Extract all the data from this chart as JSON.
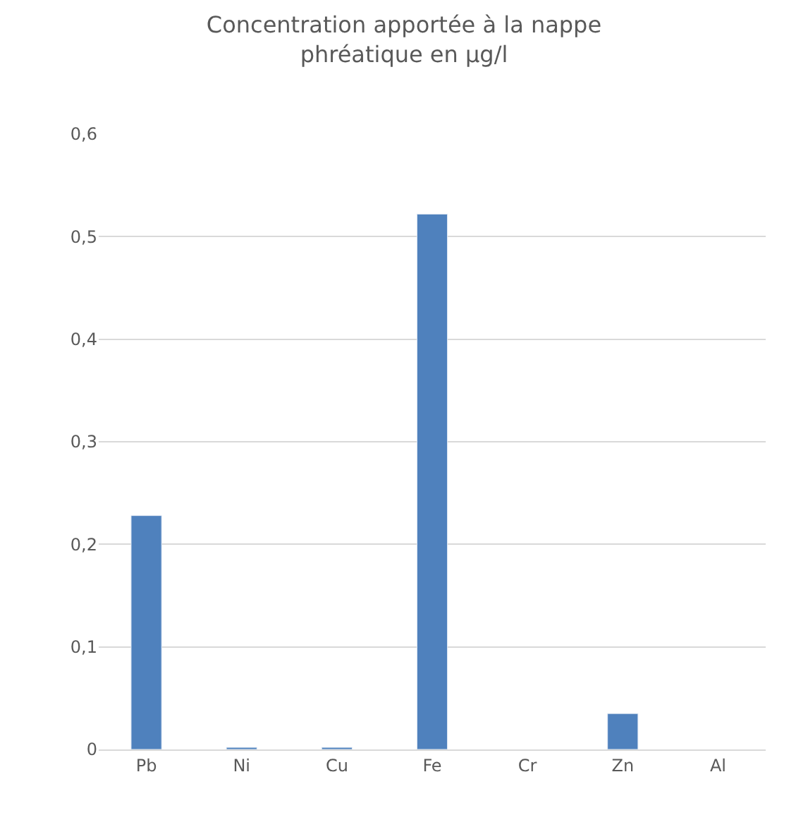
{
  "chart_data": {
    "type": "bar",
    "title": "Concentration apportée à la nappe\nphréatique en µg/l",
    "categories": [
      "Pb",
      "Ni",
      "Cu",
      "Fe",
      "Cr",
      "Zn",
      "Al"
    ],
    "values": [
      0.228,
      0.002,
      0.002,
      0.522,
      null,
      0.035,
      null
    ],
    "color": "#4f81bd",
    "ylim": [
      0,
      0.6
    ],
    "yticks": [
      {
        "value": 0,
        "label": "0"
      },
      {
        "value": 0.1,
        "label": "0,1"
      },
      {
        "value": 0.2,
        "label": "0,2"
      },
      {
        "value": 0.3,
        "label": "0,3"
      },
      {
        "value": 0.4,
        "label": "0,4"
      },
      {
        "value": 0.5,
        "label": "0,5"
      },
      {
        "value": 0.6,
        "label": "0,6"
      }
    ],
    "grid": "y"
  }
}
